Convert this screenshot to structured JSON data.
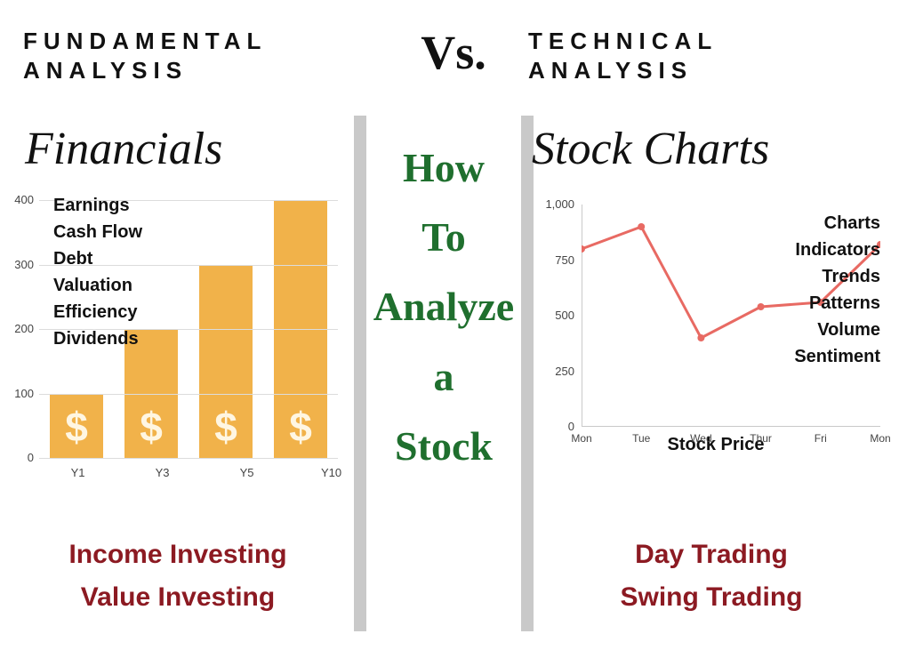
{
  "header": {
    "left_line1": "FUNDAMENTAL",
    "left_line2": "ANALYSIS",
    "vs": "Vs.",
    "right_line1": "TECHNICAL",
    "right_line2": "ANALYSIS"
  },
  "center": {
    "l1": "How",
    "l2": "To",
    "l3": "Analyze",
    "l4": "a",
    "l5": "Stock",
    "color": "#1f6f2e",
    "fontsize": 46
  },
  "left": {
    "script_title": "Financials",
    "keywords": [
      "Earnings",
      "Cash Flow",
      "Debt",
      "Valuation",
      "Efficiency",
      "Dividends"
    ],
    "bottom1": "Income Investing",
    "bottom2": "Value Investing",
    "bottom_color": "#8c1a22",
    "chart": {
      "type": "bar",
      "categories": [
        "Y1",
        "Y3",
        "Y5",
        "Y10"
      ],
      "values": [
        100,
        200,
        300,
        400
      ],
      "bar_color": "#f1b24a",
      "dollar_color": "#fff6e2",
      "ylim": [
        0,
        400
      ],
      "ytick_step": 100,
      "yticks": [
        0,
        100,
        200,
        300,
        400
      ],
      "grid_color": "#dcdcdc",
      "label_color": "#444444",
      "label_fontsize": 13,
      "bar_width_pct": 18,
      "bar_gap_pct": 7,
      "symbol": "$"
    }
  },
  "right": {
    "script_title": "Stock Charts",
    "keywords": [
      "Charts",
      "Indicators",
      "Trends",
      "Patterns",
      "Volume",
      "Sentiment"
    ],
    "bottom1": "Day Trading",
    "bottom2": "Swing Trading",
    "bottom_color": "#8c1a22",
    "chart": {
      "type": "line",
      "x_labels": [
        "Mon",
        "Tue",
        "Wed",
        "Thur",
        "Fri",
        "Mon"
      ],
      "values": [
        800,
        900,
        400,
        540,
        560,
        820
      ],
      "line_color": "#e86a63",
      "marker_color": "#e86a63",
      "line_width": 3,
      "marker_radius": 4,
      "ylim": [
        0,
        1000
      ],
      "ytick_step": 250,
      "yticks": [
        0,
        250,
        500,
        750,
        1000
      ],
      "label_fontsize": 13,
      "label_color": "#444444",
      "frame_color": "#c9c9c9",
      "caption": "Stock Price"
    }
  },
  "divider_color": "#c9c9c9"
}
